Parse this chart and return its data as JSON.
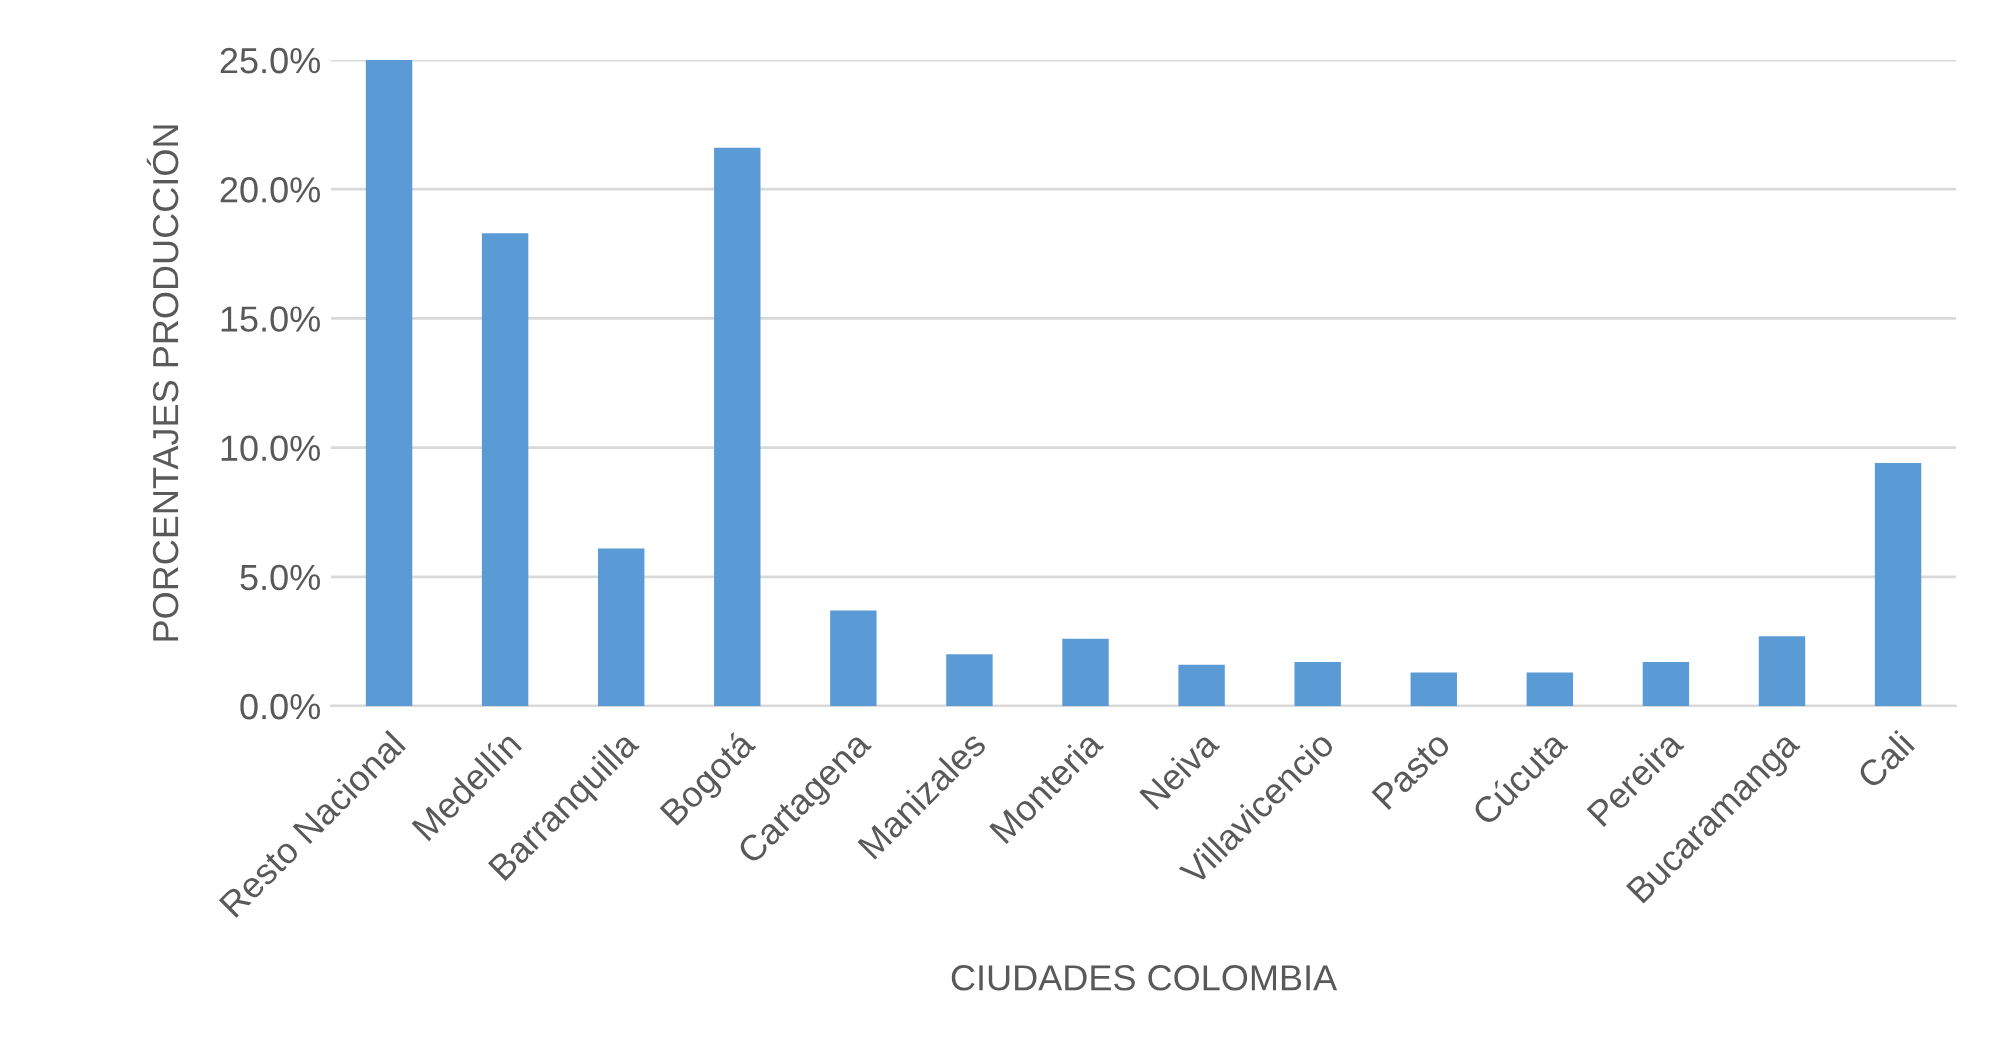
{
  "chart_data": {
    "type": "bar",
    "xlabel": "CIUDADES COLOMBIA",
    "ylabel": "PORCENTAJES PRODUCCIÓN",
    "categories": [
      "Resto Nacional",
      "Medellín",
      "Barranquilla",
      "Bogotá",
      "Cartagena",
      "Manizales",
      "Monteria",
      "Neiva",
      "Villavicencio",
      "Pasto",
      "Cúcuta",
      "Pereira",
      "Bucaramanga",
      "Cali"
    ],
    "values": [
      25.0,
      18.3,
      6.1,
      21.6,
      3.7,
      2.0,
      2.6,
      1.6,
      1.7,
      1.3,
      1.3,
      1.7,
      2.7,
      9.4
    ],
    "color": "#5b9bd5",
    "ylim": [
      0,
      25
    ],
    "yticks": [
      {
        "value": 0,
        "label": "0.0%"
      },
      {
        "value": 5,
        "label": "5.0%"
      },
      {
        "value": 10,
        "label": "10.0%"
      },
      {
        "value": 15,
        "label": "15.0%"
      },
      {
        "value": 20,
        "label": "20.0%"
      },
      {
        "value": 25,
        "label": "25.0%"
      }
    ],
    "grid": "y"
  }
}
